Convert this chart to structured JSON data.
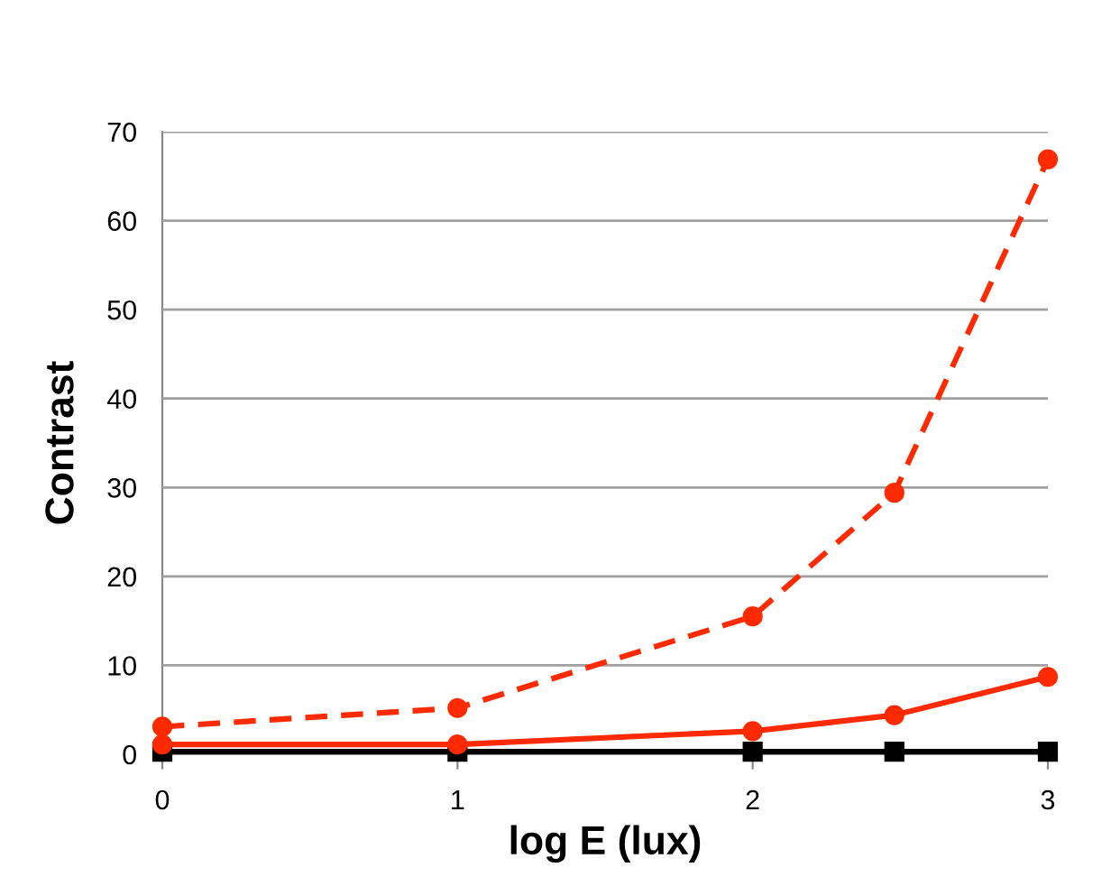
{
  "chart_data": {
    "type": "line",
    "xlabel": "log E (lux)",
    "ylabel": "Contrast",
    "x": [
      0,
      1,
      2,
      2.48,
      3
    ],
    "xlim": [
      0,
      3
    ],
    "xticks": [
      0,
      1,
      2,
      3
    ],
    "ylim": [
      0,
      70
    ],
    "yticks": [
      0,
      10,
      20,
      30,
      40,
      50,
      60,
      70
    ],
    "grid": "y",
    "legend": false,
    "series": [
      {
        "color": "#ff2a00",
        "values": [
          3.1,
          5.2,
          15.5,
          29.4,
          66.9
        ],
        "marker": "circle",
        "line_style": "dashed"
      },
      {
        "color": "#ff2a00",
        "values": [
          1.1,
          1.1,
          2.6,
          4.4,
          8.7
        ],
        "marker": "circle",
        "line_style": "solid"
      },
      {
        "color": "#000000",
        "values": [
          0.3,
          0.3,
          0.3,
          0.3,
          0.3
        ],
        "marker": "square",
        "line_style": "solid"
      }
    ]
  }
}
